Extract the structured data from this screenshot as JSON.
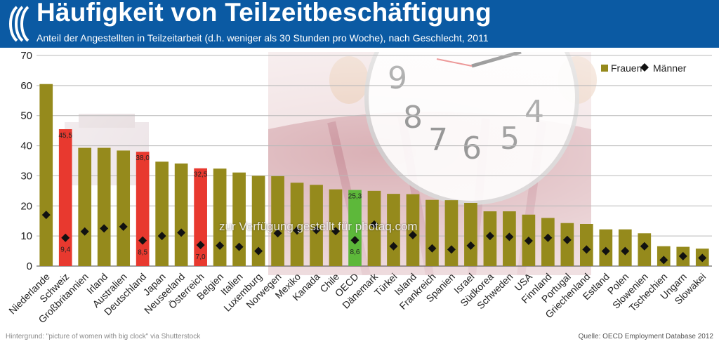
{
  "header": {
    "title": "Häufigkeit von Teilzeitbeschäftigung",
    "subtitle": "Anteil der Angestellten in Teilzeitarbeit (d.h. weniger als 30 Stunden pro Woche), nach Geschlecht, 2011"
  },
  "footer": {
    "background_credit": "Hintergrund: \"picture of women with big clock\" via Shutterstock",
    "source": "Quelle: OECD Employment Database 2012"
  },
  "watermark": "zur Verfügung gestellt für photaq.com",
  "colors": {
    "header_bg": "#0b5aa3",
    "bar_default": "#958a1c",
    "bar_highlight_red": "#e8392f",
    "bar_highlight_green": "#5db83a",
    "marker": "#111111",
    "grid": "#b9b9b9"
  },
  "chart_data": {
    "type": "bar",
    "title": "Häufigkeit von Teilzeitbeschäftigung",
    "ylim": [
      0,
      70
    ],
    "yticks": [
      0,
      10,
      20,
      30,
      40,
      50,
      60,
      70
    ],
    "grid": true,
    "legend_position": "top-right",
    "categories": [
      "Niederlande",
      "Schweiz",
      "Großbritannien",
      "Irland",
      "Australien",
      "Deutschland",
      "Japan",
      "Neuseeland",
      "Österreich",
      "Belgien",
      "Italien",
      "Luxemburg",
      "Norwegen",
      "Mexiko",
      "Kanada",
      "Chile",
      "OECD",
      "Dänemark",
      "Türkei",
      "Island",
      "Frankreich",
      "Spanien",
      "Israel",
      "Südkorea",
      "Schweden",
      "USA",
      "Finnland",
      "Portugal",
      "Griechenland",
      "Estland",
      "Polen",
      "Slowenien",
      "Tschechien",
      "Ungarn",
      "Slowakei"
    ],
    "series": [
      {
        "name": "Frauen",
        "kind": "bar",
        "values": [
          60.5,
          45.5,
          39.3,
          39.3,
          38.4,
          38.0,
          34.7,
          34.1,
          32.5,
          32.4,
          31.1,
          30.0,
          29.9,
          27.7,
          27.0,
          25.5,
          25.3,
          25.0,
          24.0,
          23.9,
          22.0,
          21.9,
          21.0,
          18.2,
          18.2,
          17.1,
          16.0,
          14.3,
          14.0,
          12.2,
          12.2,
          10.9,
          6.6,
          6.4,
          5.8
        ],
        "data_labels": {
          "1": "45,5",
          "5": "38,0",
          "8": "32,5",
          "16": "25,3"
        },
        "highlight": {
          "1": "red",
          "5": "red",
          "8": "red",
          "16": "green"
        }
      },
      {
        "name": "Männer",
        "kind": "marker",
        "values": [
          17.0,
          9.4,
          11.5,
          12.5,
          13.1,
          8.5,
          10.0,
          11.1,
          7.0,
          6.8,
          6.4,
          5.0,
          10.9,
          11.8,
          12.0,
          11.6,
          8.6,
          13.8,
          6.6,
          10.3,
          5.9,
          5.5,
          6.8,
          10.0,
          9.7,
          8.4,
          9.4,
          8.7,
          5.5,
          5.0,
          5.0,
          6.6,
          2.0,
          3.3,
          2.7
        ],
        "data_labels": {
          "1": "9,4",
          "5": "8,5",
          "8": "7,0",
          "16": "8,6"
        }
      }
    ]
  }
}
